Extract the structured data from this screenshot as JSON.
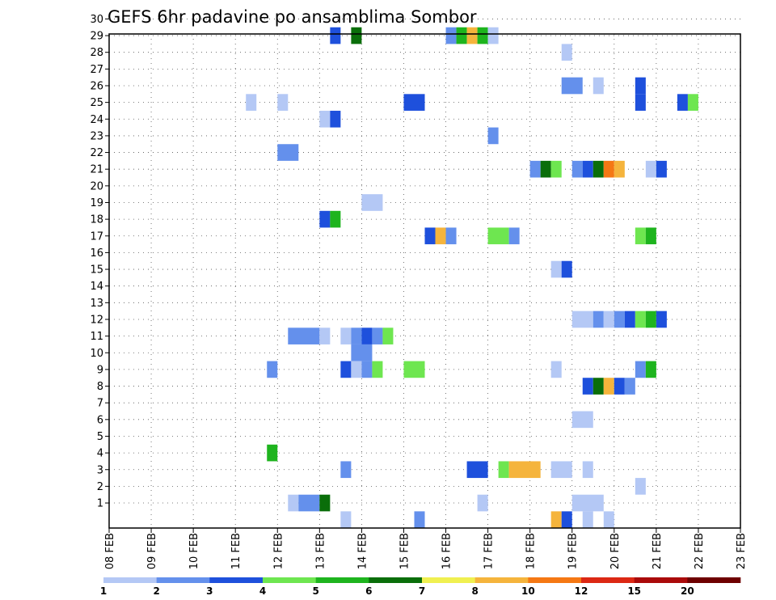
{
  "chart_data": {
    "type": "heatmap",
    "title": "GEFS 6hr padavine po ansamblima Sombor",
    "xlabel": "",
    "ylabel": "",
    "grid": true,
    "x_ticks": [
      "08 FEB",
      "09 FEB",
      "10 FEB",
      "11 FEB",
      "12 FEB",
      "13 FEB",
      "14 FEB",
      "15 FEB",
      "16 FEB",
      "17 FEB",
      "18 FEB",
      "19 FEB",
      "20 FEB",
      "21 FEB",
      "22 FEB",
      "23 FEB"
    ],
    "y_ticks": [
      "1",
      "2",
      "3",
      "4",
      "5",
      "6",
      "7",
      "8",
      "9",
      "10",
      "11",
      "12",
      "13",
      "14",
      "15",
      "16",
      "17",
      "18",
      "19",
      "20",
      "21",
      "22",
      "23",
      "24",
      "25",
      "26",
      "27",
      "28",
      "29",
      "30"
    ],
    "colorbar": {
      "colors": [
        "#b4c8f5",
        "#6490ec",
        "#1e50dc",
        "#6ee650",
        "#1eb41e",
        "#0a6e0a",
        "#f0f050",
        "#f5b43c",
        "#f57814",
        "#dc2814",
        "#aa0a0a",
        "#6e0000"
      ],
      "labels": [
        {
          "value": "1",
          "at": 0
        },
        {
          "value": "2",
          "at": 1
        },
        {
          "value": "3",
          "at": 2
        },
        {
          "value": "4",
          "at": 3
        },
        {
          "value": "5",
          "at": 4
        },
        {
          "value": "6",
          "at": 5
        },
        {
          "value": "7",
          "at": 6
        },
        {
          "value": "8",
          "at": 7
        },
        {
          "value": "10",
          "at": 8
        },
        {
          "value": "12",
          "at": 9
        },
        {
          "value": "15",
          "at": 10
        },
        {
          "value": "20",
          "at": 11
        }
      ]
    },
    "cells": [
      {
        "m": 29,
        "x0": 13.25,
        "x1": 13.5,
        "c": 2
      },
      {
        "m": 29,
        "x0": 13.75,
        "x1": 14.0,
        "c": 5
      },
      {
        "m": 29,
        "x0": 16.0,
        "x1": 16.25,
        "c": 1
      },
      {
        "m": 29,
        "x0": 16.25,
        "x1": 16.5,
        "c": 4
      },
      {
        "m": 29,
        "x0": 16.5,
        "x1": 16.75,
        "c": 7
      },
      {
        "m": 29,
        "x0": 16.75,
        "x1": 17.0,
        "c": 4
      },
      {
        "m": 29,
        "x0": 17.0,
        "x1": 17.25,
        "c": 0
      },
      {
        "m": 28,
        "x0": 18.75,
        "x1": 19.0,
        "c": 0
      },
      {
        "m": 26,
        "x0": 18.75,
        "x1": 19.25,
        "c": 1
      },
      {
        "m": 26,
        "x0": 19.5,
        "x1": 19.75,
        "c": 0
      },
      {
        "m": 26,
        "x0": 20.5,
        "x1": 20.75,
        "c": 2
      },
      {
        "m": 25,
        "x0": 11.25,
        "x1": 11.5,
        "c": 0
      },
      {
        "m": 25,
        "x0": 12.0,
        "x1": 12.25,
        "c": 0
      },
      {
        "m": 25,
        "x0": 15.0,
        "x1": 15.5,
        "c": 2
      },
      {
        "m": 25,
        "x0": 20.5,
        "x1": 20.75,
        "c": 2
      },
      {
        "m": 25,
        "x0": 21.5,
        "x1": 21.75,
        "c": 2
      },
      {
        "m": 25,
        "x0": 21.75,
        "x1": 22.0,
        "c": 3
      },
      {
        "m": 24,
        "x0": 13.0,
        "x1": 13.25,
        "c": 0
      },
      {
        "m": 24,
        "x0": 13.25,
        "x1": 13.5,
        "c": 2
      },
      {
        "m": 23,
        "x0": 17.0,
        "x1": 17.25,
        "c": 1
      },
      {
        "m": 22,
        "x0": 12.0,
        "x1": 12.5,
        "c": 1
      },
      {
        "m": 21,
        "x0": 18.0,
        "x1": 18.25,
        "c": 1
      },
      {
        "m": 21,
        "x0": 18.25,
        "x1": 18.5,
        "c": 5
      },
      {
        "m": 21,
        "x0": 18.5,
        "x1": 18.75,
        "c": 3
      },
      {
        "m": 21,
        "x0": 19.0,
        "x1": 19.25,
        "c": 1
      },
      {
        "m": 21,
        "x0": 19.25,
        "x1": 19.5,
        "c": 2
      },
      {
        "m": 21,
        "x0": 19.5,
        "x1": 19.75,
        "c": 5
      },
      {
        "m": 21,
        "x0": 19.75,
        "x1": 20.0,
        "c": 8
      },
      {
        "m": 21,
        "x0": 20.0,
        "x1": 20.25,
        "c": 7
      },
      {
        "m": 21,
        "x0": 20.75,
        "x1": 21.0,
        "c": 0
      },
      {
        "m": 21,
        "x0": 21.0,
        "x1": 21.25,
        "c": 2
      },
      {
        "m": 19,
        "x0": 14.0,
        "x1": 14.5,
        "c": 0
      },
      {
        "m": 18,
        "x0": 13.0,
        "x1": 13.25,
        "c": 2
      },
      {
        "m": 18,
        "x0": 13.25,
        "x1": 13.5,
        "c": 4
      },
      {
        "m": 17,
        "x0": 15.5,
        "x1": 15.75,
        "c": 2
      },
      {
        "m": 17,
        "x0": 15.75,
        "x1": 16.0,
        "c": 7
      },
      {
        "m": 17,
        "x0": 16.0,
        "x1": 16.25,
        "c": 1
      },
      {
        "m": 17,
        "x0": 17.0,
        "x1": 17.5,
        "c": 3
      },
      {
        "m": 17,
        "x0": 17.5,
        "x1": 17.75,
        "c": 1
      },
      {
        "m": 17,
        "x0": 20.5,
        "x1": 20.75,
        "c": 3
      },
      {
        "m": 17,
        "x0": 20.75,
        "x1": 21.0,
        "c": 4
      },
      {
        "m": 15,
        "x0": 18.5,
        "x1": 18.75,
        "c": 0
      },
      {
        "m": 15,
        "x0": 18.75,
        "x1": 19.0,
        "c": 2
      },
      {
        "m": 12,
        "x0": 19.0,
        "x1": 19.5,
        "c": 0
      },
      {
        "m": 12,
        "x0": 19.5,
        "x1": 19.75,
        "c": 1
      },
      {
        "m": 12,
        "x0": 19.75,
        "x1": 20.0,
        "c": 0
      },
      {
        "m": 12,
        "x0": 20.0,
        "x1": 20.25,
        "c": 1
      },
      {
        "m": 12,
        "x0": 20.25,
        "x1": 20.5,
        "c": 2
      },
      {
        "m": 12,
        "x0": 20.5,
        "x1": 20.75,
        "c": 3
      },
      {
        "m": 12,
        "x0": 20.75,
        "x1": 21.0,
        "c": 4
      },
      {
        "m": 12,
        "x0": 21.0,
        "x1": 21.25,
        "c": 2
      },
      {
        "m": 11,
        "x0": 12.25,
        "x1": 13.0,
        "c": 1
      },
      {
        "m": 11,
        "x0": 13.0,
        "x1": 13.25,
        "c": 0
      },
      {
        "m": 11,
        "x0": 13.5,
        "x1": 13.75,
        "c": 0
      },
      {
        "m": 11,
        "x0": 13.75,
        "x1": 14.0,
        "c": 1
      },
      {
        "m": 11,
        "x0": 14.0,
        "x1": 14.25,
        "c": 2
      },
      {
        "m": 11,
        "x0": 14.25,
        "x1": 14.5,
        "c": 1
      },
      {
        "m": 11,
        "x0": 14.5,
        "x1": 14.75,
        "c": 3
      },
      {
        "m": 10,
        "x0": 13.75,
        "x1": 14.25,
        "c": 1
      },
      {
        "m": 9,
        "x0": 11.75,
        "x1": 12.0,
        "c": 1
      },
      {
        "m": 9,
        "x0": 13.5,
        "x1": 13.75,
        "c": 2
      },
      {
        "m": 9,
        "x0": 13.75,
        "x1": 14.0,
        "c": 0
      },
      {
        "m": 9,
        "x0": 14.0,
        "x1": 14.25,
        "c": 1
      },
      {
        "m": 9,
        "x0": 14.25,
        "x1": 14.5,
        "c": 3
      },
      {
        "m": 9,
        "x0": 15.0,
        "x1": 15.5,
        "c": 3
      },
      {
        "m": 9,
        "x0": 18.5,
        "x1": 18.75,
        "c": 0
      },
      {
        "m": 9,
        "x0": 20.5,
        "x1": 20.75,
        "c": 1
      },
      {
        "m": 9,
        "x0": 20.75,
        "x1": 21.0,
        "c": 4
      },
      {
        "m": 8,
        "x0": 19.25,
        "x1": 19.5,
        "c": 2
      },
      {
        "m": 8,
        "x0": 19.5,
        "x1": 19.75,
        "c": 5
      },
      {
        "m": 8,
        "x0": 19.75,
        "x1": 20.0,
        "c": 7
      },
      {
        "m": 8,
        "x0": 20.0,
        "x1": 20.25,
        "c": 2
      },
      {
        "m": 8,
        "x0": 20.25,
        "x1": 20.5,
        "c": 1
      },
      {
        "m": 6,
        "x0": 19.0,
        "x1": 19.5,
        "c": 0
      },
      {
        "m": 4,
        "x0": 11.75,
        "x1": 12.0,
        "c": 4
      },
      {
        "m": 3,
        "x0": 13.5,
        "x1": 13.75,
        "c": 1
      },
      {
        "m": 3,
        "x0": 16.5,
        "x1": 17.0,
        "c": 2
      },
      {
        "m": 3,
        "x0": 17.25,
        "x1": 17.5,
        "c": 3
      },
      {
        "m": 3,
        "x0": 17.5,
        "x1": 18.25,
        "c": 7
      },
      {
        "m": 3,
        "x0": 18.5,
        "x1": 19.0,
        "c": 0
      },
      {
        "m": 3,
        "x0": 19.25,
        "x1": 19.5,
        "c": 0
      },
      {
        "m": 2,
        "x0": 20.5,
        "x1": 20.75,
        "c": 0
      },
      {
        "m": 1,
        "x0": 12.25,
        "x1": 12.5,
        "c": 0
      },
      {
        "m": 1,
        "x0": 12.5,
        "x1": 13.0,
        "c": 1
      },
      {
        "m": 1,
        "x0": 13.0,
        "x1": 13.25,
        "c": 5
      },
      {
        "m": 1,
        "x0": 16.75,
        "x1": 17.0,
        "c": 0
      },
      {
        "m": 1,
        "x0": 19.0,
        "x1": 19.75,
        "c": 0
      },
      {
        "m": 0,
        "x0": 13.5,
        "x1": 13.75,
        "c": 0
      },
      {
        "m": 0,
        "x0": 15.25,
        "x1": 15.5,
        "c": 1
      },
      {
        "m": 0,
        "x0": 18.5,
        "x1": 18.75,
        "c": 7
      },
      {
        "m": 0,
        "x0": 18.75,
        "x1": 19.0,
        "c": 2
      },
      {
        "m": 0,
        "x0": 19.25,
        "x1": 19.5,
        "c": 0
      },
      {
        "m": 0,
        "x0": 19.75,
        "x1": 20.0,
        "c": 0
      }
    ]
  }
}
